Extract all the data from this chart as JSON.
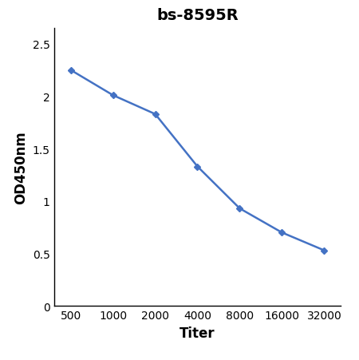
{
  "title": "bs-8595R",
  "xlabel": "Titer",
  "ylabel": "OD450nm",
  "x_values": [
    1,
    2,
    3,
    4,
    5,
    6,
    7
  ],
  "x_labels": [
    "500",
    "1000",
    "2000",
    "4000",
    "8000",
    "16000",
    "32000"
  ],
  "y_values": [
    2.25,
    2.01,
    1.83,
    1.33,
    0.93,
    0.7,
    0.53
  ],
  "y_ticks": [
    0,
    0.5,
    1.0,
    1.5,
    2.0,
    2.5
  ],
  "y_tick_labels": [
    "0",
    "0.5",
    "1",
    "1.5",
    "2",
    "2.5"
  ],
  "ylim": [
    0,
    2.65
  ],
  "xlim": [
    0.6,
    7.4
  ],
  "line_color": "#4472C4",
  "marker": "D",
  "marker_size": 4,
  "background_color": "#ffffff",
  "title_fontsize": 14,
  "label_fontsize": 12,
  "tick_fontsize": 10
}
